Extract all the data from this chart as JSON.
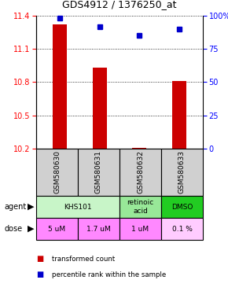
{
  "title": "GDS4912 / 1376250_at",
  "samples": [
    "GSM580630",
    "GSM580631",
    "GSM580632",
    "GSM580633"
  ],
  "bar_values": [
    11.32,
    10.93,
    10.21,
    10.81
  ],
  "bar_base": 10.2,
  "percentile_values": [
    98,
    92,
    85,
    90
  ],
  "percentile_scale_max": 100,
  "ylim_left": [
    10.2,
    11.4
  ],
  "yticks_left": [
    10.2,
    10.5,
    10.8,
    11.1,
    11.4
  ],
  "yticks_right": [
    0,
    25,
    50,
    75,
    100
  ],
  "bar_color": "#cc0000",
  "dot_color": "#0000cc",
  "agent_row": [
    {
      "label": "KHS101",
      "span": [
        0,
        2
      ],
      "color": "#c8f5c8"
    },
    {
      "label": "retinoic\nacid",
      "span": [
        2,
        3
      ],
      "color": "#98e898"
    },
    {
      "label": "DMSO",
      "span": [
        3,
        4
      ],
      "color": "#22cc22"
    }
  ],
  "dose_row": [
    {
      "label": "5 uM",
      "span": [
        0,
        1
      ],
      "color": "#ff88ff"
    },
    {
      "label": "1.7 uM",
      "span": [
        1,
        2
      ],
      "color": "#ff88ff"
    },
    {
      "label": "1 uM",
      "span": [
        2,
        3
      ],
      "color": "#ff88ff"
    },
    {
      "label": "0.1 %",
      "span": [
        3,
        4
      ],
      "color": "#ffccff"
    }
  ],
  "legend_items": [
    {
      "color": "#cc0000",
      "label": "transformed count"
    },
    {
      "color": "#0000cc",
      "label": "percentile rank within the sample"
    }
  ],
  "sample_bg": "#d0d0d0",
  "grid_color": "black"
}
